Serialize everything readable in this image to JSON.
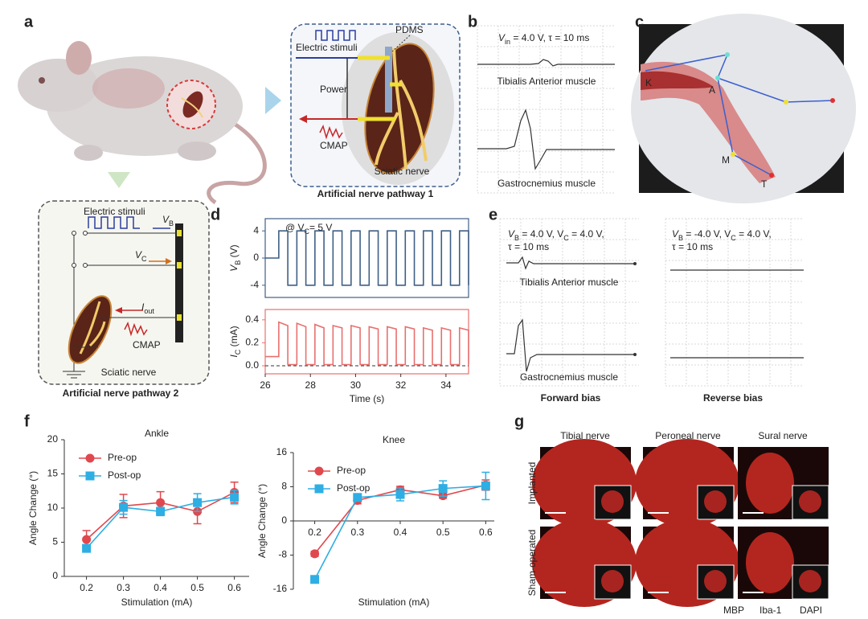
{
  "panel_labels": [
    "a",
    "b",
    "c",
    "d",
    "e",
    "f",
    "g"
  ],
  "a": {
    "pathway1": {
      "stimuli": "Electric stimuli",
      "pdms": "PDMS",
      "power": "Power",
      "cmap": "CMAP",
      "nerve": "Sciatic nerve",
      "title": "Artificial nerve pathway 1"
    },
    "pathway2": {
      "stimuli": "Electric stimuli",
      "vb": [
        "V",
        "B"
      ],
      "vc": [
        "V",
        "C"
      ],
      "iout": [
        "I",
        "out"
      ],
      "cmap": "CMAP",
      "nerve": "Sciatic nerve",
      "title": "Artificial nerve pathway 2"
    }
  },
  "b": {
    "condition": [
      "V",
      "in",
      " = 4.0 V, τ = 10 ms"
    ],
    "muscle_1": "Tibialis Anterior muscle",
    "muscle_2": "Gastrocnemius muscle"
  },
  "c": {
    "points": [
      "K",
      "A",
      "M",
      "T"
    ]
  },
  "e": {
    "forward": {
      "condition": [
        "V",
        "B",
        " = 4.0 V, V",
        "C",
        " = 4.0 V,"
      ],
      "condition_2": "τ = 10 ms",
      "muscle_1": "Tibialis Anterior muscle",
      "muscle_2": "Gastrocnemius muscle",
      "title": "Forward bias"
    },
    "reverse": {
      "condition": [
        "V",
        "B",
        " = -4.0 V, V",
        "C",
        " = 4.0 V,"
      ],
      "condition_2": "τ = 10 ms",
      "title": "Reverse bias"
    }
  },
  "g": {
    "columns": [
      "Tibial nerve",
      "Peroneal nerve",
      "Sural nerve"
    ],
    "rows": [
      "Implanted",
      "Sham-operated"
    ],
    "stains": [
      {
        "name": "MBP",
        "color": "#d42a2a"
      },
      {
        "name": "Iba-1",
        "color": "#2aa84a"
      },
      {
        "name": "DAPI",
        "color": "#2a6fd4"
      }
    ]
  },
  "chart_data": [
    {
      "type": "line",
      "ylabel": [
        "V",
        "B",
        " (V)"
      ],
      "annotation": [
        "@ V",
        "C",
        "= 5 V"
      ],
      "color": "#3f5f85",
      "box": true,
      "x": [
        26,
        26.6,
        26.6,
        27,
        27,
        27.4,
        27.4,
        27.8,
        27.8,
        28.2,
        28.2,
        28.6,
        28.6,
        29,
        29,
        29.4,
        29.4,
        29.8,
        29.8,
        30.2,
        30.2,
        30.6,
        30.6,
        31,
        31,
        31.4,
        31.4,
        31.8,
        31.8,
        32.2,
        32.2,
        32.6,
        32.6,
        33,
        33,
        33.4,
        33.4,
        33.8,
        33.8,
        34.2,
        34.2,
        34.6,
        34.6,
        35,
        35
      ],
      "values": [
        0,
        0,
        4,
        4,
        -4,
        -4,
        4,
        4,
        -4,
        -4,
        4,
        4,
        -4,
        -4,
        4,
        4,
        -4,
        -4,
        4,
        4,
        -4,
        -4,
        4,
        4,
        -4,
        -4,
        4,
        4,
        -4,
        -4,
        4,
        4,
        -4,
        -4,
        4,
        4,
        -4,
        -4,
        4,
        4,
        -4,
        -4,
        4,
        4,
        -4
      ],
      "xlim": [
        26,
        35
      ],
      "ylim": [
        -5.8,
        5.8
      ],
      "yticks": [
        -4,
        0,
        4
      ]
    },
    {
      "type": "line",
      "ylabel": [
        "I",
        "C",
        " (mA)"
      ],
      "xlabel": "Time (s)",
      "color": "#e8706e",
      "box": true,
      "zero_line": true,
      "x": [
        26,
        26.6,
        26.6,
        27,
        27,
        27.4,
        27.4,
        27.8,
        27.8,
        28.2,
        28.2,
        28.6,
        28.6,
        29,
        29,
        29.4,
        29.4,
        29.8,
        29.8,
        30.2,
        30.2,
        30.6,
        30.6,
        31,
        31,
        31.4,
        31.4,
        31.8,
        31.8,
        32.2,
        32.2,
        32.6,
        32.6,
        33,
        33,
        33.4,
        33.4,
        33.8,
        33.8,
        34.2,
        34.2,
        34.6,
        34.6,
        35,
        35
      ],
      "values": [
        0.08,
        0.08,
        0.38,
        0.35,
        0.01,
        0.01,
        0.37,
        0.34,
        0.01,
        0.01,
        0.36,
        0.33,
        0.01,
        0.01,
        0.35,
        0.33,
        0.01,
        0.01,
        0.35,
        0.33,
        0.01,
        0.01,
        0.34,
        0.32,
        0.01,
        0.01,
        0.34,
        0.32,
        0.01,
        0.01,
        0.34,
        0.32,
        0.01,
        0.01,
        0.33,
        0.31,
        0.01,
        0.01,
        0.33,
        0.31,
        0.01,
        0.01,
        0.33,
        0.31,
        0.01
      ],
      "xlim": [
        26,
        35
      ],
      "ylim": [
        -0.07,
        0.49
      ],
      "xticks": [
        26,
        28,
        30,
        32,
        34
      ],
      "yticks": [
        {
          "value": 0,
          "label": "0.0"
        },
        0.2,
        0.4
      ]
    },
    {
      "type": "line",
      "title": "Ankle",
      "xlabel": "Stimulation (mA)",
      "ylabel": "Angle Change (°)",
      "legend": "upper left",
      "x": [
        0.2,
        0.3,
        0.4,
        0.5,
        0.6
      ],
      "series": [
        {
          "name": "Pre-op",
          "color": "#e0484e",
          "marker": "circle",
          "values": [
            5.4,
            10.3,
            10.8,
            9.5,
            12.3
          ],
          "errors": [
            1.3,
            1.7,
            1.6,
            1.8,
            1.5
          ]
        },
        {
          "name": "Post-op",
          "color": "#2eaee3",
          "marker": "square",
          "values": [
            4.1,
            10.1,
            9.5,
            10.8,
            11.6
          ],
          "errors": [
            0.5,
            1.0,
            0.6,
            1.3,
            1.0
          ]
        }
      ],
      "xlim": [
        0.14,
        0.64
      ],
      "ylim": [
        0,
        20
      ],
      "xticks": [
        0.2,
        0.3,
        0.4,
        0.5,
        0.6
      ],
      "yticks": [
        0,
        5,
        10,
        15,
        20
      ]
    },
    {
      "type": "line",
      "title": "Knee",
      "xlabel": "Stimulation (mA)",
      "ylabel": "Angle Change (°)",
      "legend": "upper left",
      "x": [
        0.2,
        0.3,
        0.4,
        0.5,
        0.6
      ],
      "series": [
        {
          "name": "Pre-op",
          "color": "#e0484e",
          "marker": "circle",
          "values": [
            -7.7,
            4.8,
            7.3,
            5.9,
            8.4
          ],
          "errors": [
            0.6,
            0.8,
            0.8,
            0.6,
            1.2
          ]
        },
        {
          "name": "Post-op",
          "color": "#2eaee3",
          "marker": "square",
          "values": [
            -13.7,
            5.5,
            6.2,
            7.6,
            8.2
          ],
          "errors": [
            0.8,
            0.8,
            1.5,
            1.8,
            3.2
          ]
        }
      ],
      "xlim": [
        0.15,
        0.62
      ],
      "ylim": [
        -16,
        16
      ],
      "xticks": [
        0.2,
        0.3,
        0.4,
        0.5,
        0.6
      ],
      "yticks": [
        -16,
        -8,
        0,
        8,
        16
      ]
    }
  ]
}
